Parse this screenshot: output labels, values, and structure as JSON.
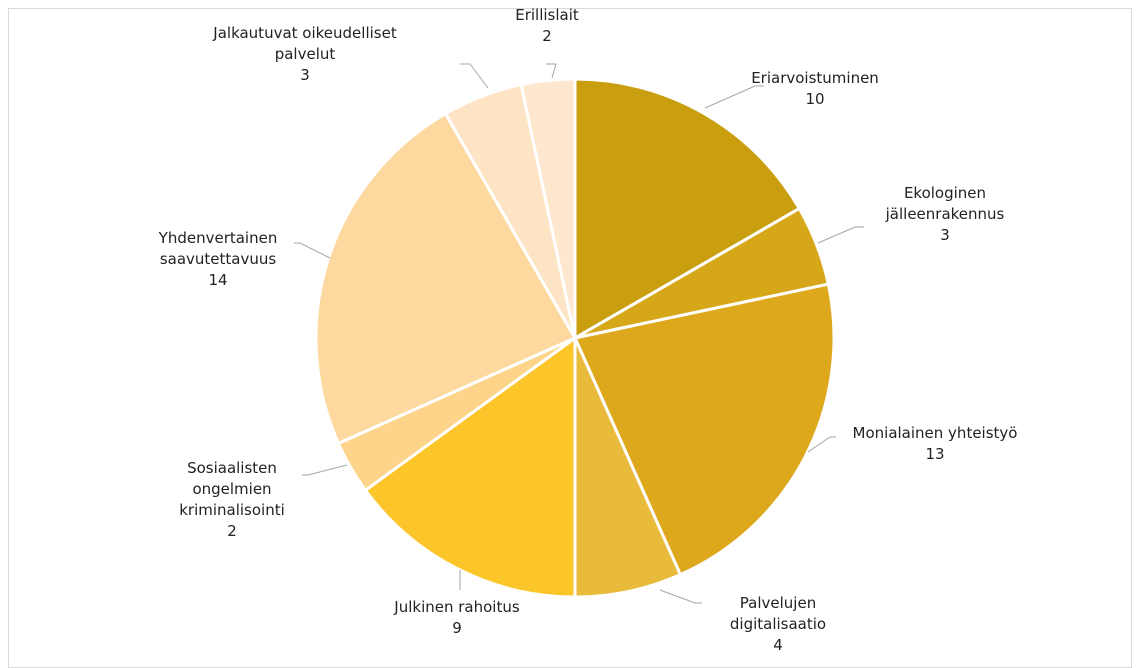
{
  "chart_data": {
    "type": "pie",
    "categories": [
      "Eriarvoistuminen",
      "Ekologinen jälleenrakennus",
      "Monialainen yhteistyö",
      "Palvelujen digitalisaatio",
      "Julkinen rahoitus",
      "Sosiaalisten ongelmien kriminalisointi",
      "Yhdenvertainen saavutettavuus",
      "Jalkautuvat oikeudelliset palvelut",
      "Erillislait"
    ],
    "values": [
      10,
      3,
      13,
      4,
      9,
      2,
      14,
      3,
      2
    ],
    "colors": [
      "#c99f10",
      "#d6a819",
      "#dea81c",
      "#e9bb3a",
      "#fcc52a",
      "#fdd48a",
      "#fdd9a0",
      "#fde4c4",
      "#fee7cf"
    ]
  }
}
